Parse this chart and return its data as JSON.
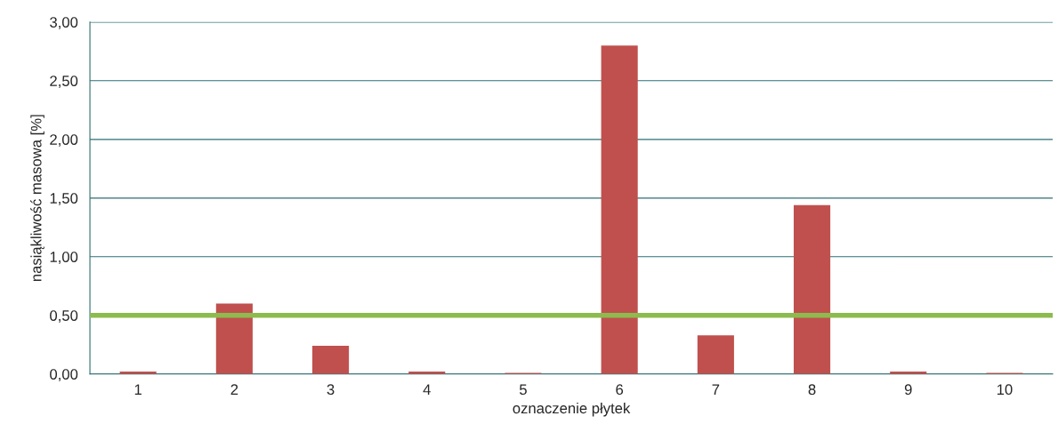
{
  "chart_data": {
    "type": "bar",
    "xlabel": "oznaczenie płytek",
    "ylabel": "nasiąkliwość masowa [%]",
    "categories": [
      "1",
      "2",
      "3",
      "4",
      "5",
      "6",
      "7",
      "8",
      "9",
      "10"
    ],
    "values": [
      0.02,
      0.6,
      0.24,
      0.02,
      0.01,
      2.8,
      0.33,
      1.44,
      0.02,
      0.01
    ],
    "color": "#c0504d",
    "ylim": [
      0,
      3
    ],
    "yticks": [
      {
        "value": 0,
        "label": "0,00"
      },
      {
        "value": 0.5,
        "label": "0,50"
      },
      {
        "value": 1,
        "label": "1,00"
      },
      {
        "value": 1.5,
        "label": "1,50"
      },
      {
        "value": 2,
        "label": "2,00"
      },
      {
        "value": 2.5,
        "label": "2,50"
      },
      {
        "value": 3,
        "label": "3,00"
      }
    ],
    "grid": "y",
    "ref_lines": [
      {
        "axis": "y",
        "value": 0.5,
        "color": "#8dbb4f",
        "line_style": "solid"
      }
    ]
  }
}
